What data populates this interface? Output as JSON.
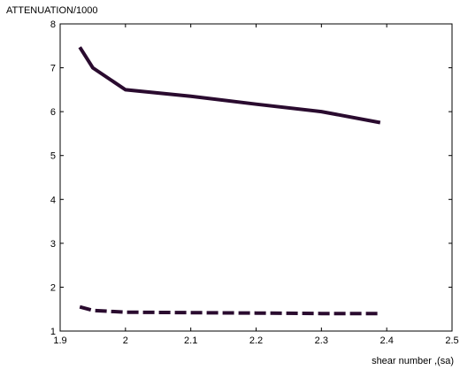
{
  "chart_data": {
    "type": "line",
    "title": "",
    "xlabel": "shear number ,(sa)",
    "ylabel": "ATTENUATION/1000",
    "xlim": [
      1.9,
      2.5
    ],
    "ylim": [
      1,
      8
    ],
    "xticks": [
      "1.9",
      "2",
      "2.1",
      "2.2",
      "2.3",
      "2.4",
      "2.5"
    ],
    "yticks": [
      "1",
      "2",
      "3",
      "4",
      "5",
      "6",
      "7",
      "8"
    ],
    "grid": false,
    "legend": false,
    "series": [
      {
        "style": "solid",
        "color": "#2a0b2f",
        "x": [
          1.93,
          1.95,
          2.0,
          2.1,
          2.2,
          2.3,
          2.39
        ],
        "y": [
          7.47,
          7.0,
          6.5,
          6.35,
          6.17,
          6.0,
          5.75
        ]
      },
      {
        "style": "dashed",
        "color": "#2a0b2f",
        "x": [
          1.93,
          1.95,
          2.0,
          2.1,
          2.2,
          2.3,
          2.39
        ],
        "y": [
          1.55,
          1.47,
          1.43,
          1.42,
          1.41,
          1.4,
          1.4
        ]
      }
    ]
  }
}
